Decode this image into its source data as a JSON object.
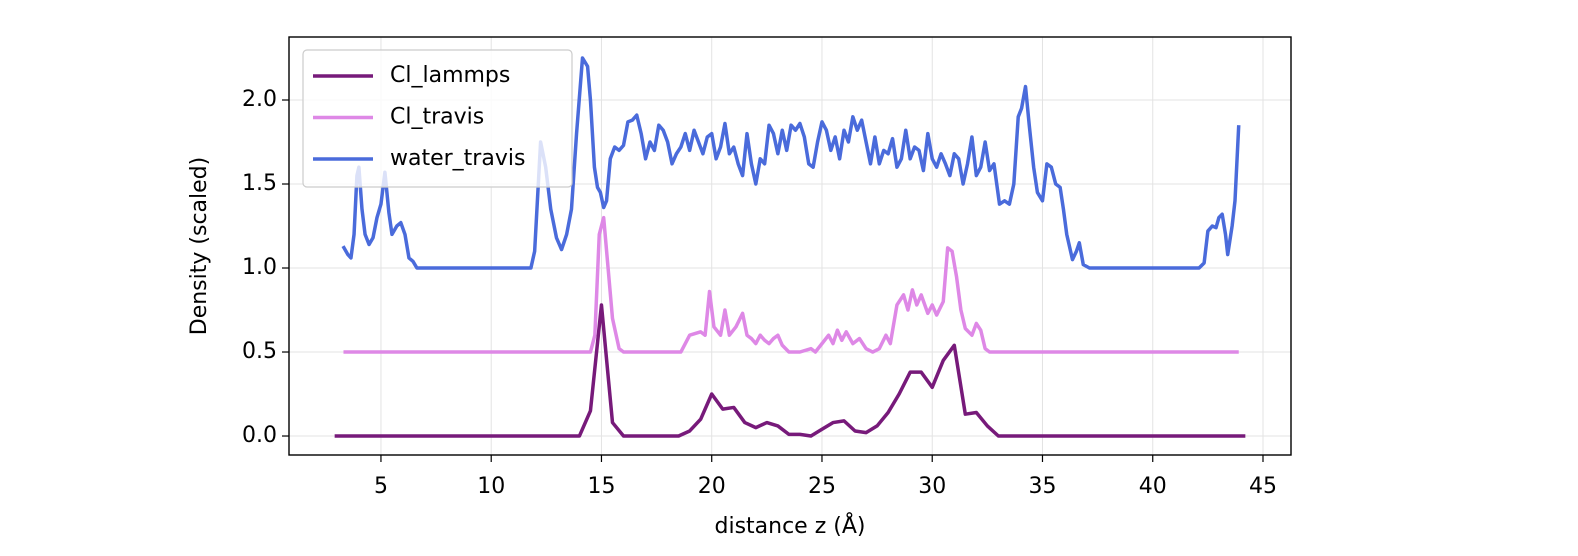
{
  "chart_data": {
    "type": "line",
    "xlabel": "distance z (Å)",
    "ylabel": "Density (scaled)",
    "xlim": [
      0.83,
      46.27
    ],
    "ylim": [
      -0.113,
      2.375
    ],
    "xticks": [
      5,
      10,
      15,
      20,
      25,
      30,
      35,
      40,
      45
    ],
    "yticks": [
      {
        "value": 0,
        "label": "0.0"
      },
      0.5,
      {
        "value": 1,
        "label": "1.0"
      },
      1.5,
      {
        "value": 2,
        "label": "2.0"
      }
    ],
    "grid": true,
    "legend": "upper left",
    "series": [
      {
        "name": "Cl_lammps",
        "color": "#771a7a",
        "x": [
          2.9,
          14.0,
          14.5,
          15.0,
          15.5,
          16.0,
          18.5,
          19.0,
          19.5,
          20.0,
          20.5,
          21.0,
          21.5,
          22.0,
          22.5,
          23.0,
          23.5,
          24.0,
          24.5,
          25.0,
          25.5,
          26.0,
          26.5,
          27.0,
          27.5,
          28.0,
          28.5,
          29.0,
          29.5,
          30.0,
          30.5,
          31.0,
          31.5,
          32.0,
          32.5,
          33.0,
          44.2
        ],
        "values": [
          0,
          0,
          0.15,
          0.78,
          0.08,
          0,
          0,
          0.03,
          0.1,
          0.25,
          0.16,
          0.17,
          0.08,
          0.05,
          0.08,
          0.06,
          0.01,
          0.01,
          0,
          0.04,
          0.08,
          0.09,
          0.03,
          0.02,
          0.06,
          0.14,
          0.25,
          0.38,
          0.38,
          0.29,
          0.45,
          0.54,
          0.13,
          0.14,
          0.06,
          0,
          0
        ]
      },
      {
        "name": "Cl_travis",
        "color": "#de88e6",
        "x": [
          3.3,
          14.5,
          14.7,
          14.9,
          15.1,
          15.3,
          15.5,
          15.8,
          16.0,
          18.6,
          19.0,
          19.5,
          19.7,
          19.9,
          20.1,
          20.4,
          20.6,
          20.8,
          21.1,
          21.4,
          21.6,
          21.8,
          22.0,
          22.2,
          22.4,
          22.6,
          22.8,
          23.0,
          23.2,
          23.5,
          24.0,
          24.5,
          24.7,
          25.0,
          25.3,
          25.5,
          25.7,
          25.9,
          26.1,
          26.4,
          26.7,
          27.0,
          27.3,
          27.6,
          27.9,
          28.1,
          28.4,
          28.7,
          28.9,
          29.1,
          29.3,
          29.5,
          29.8,
          30.0,
          30.2,
          30.5,
          30.7,
          30.9,
          31.1,
          31.3,
          31.5,
          31.8,
          32.0,
          32.2,
          32.4,
          32.6,
          43.9
        ],
        "values": [
          0.5,
          0.5,
          0.6,
          1.2,
          1.3,
          1.0,
          0.7,
          0.52,
          0.5,
          0.5,
          0.6,
          0.62,
          0.6,
          0.86,
          0.65,
          0.6,
          0.75,
          0.6,
          0.65,
          0.73,
          0.6,
          0.58,
          0.55,
          0.6,
          0.57,
          0.55,
          0.58,
          0.6,
          0.54,
          0.5,
          0.5,
          0.52,
          0.5,
          0.55,
          0.6,
          0.55,
          0.63,
          0.57,
          0.62,
          0.55,
          0.58,
          0.52,
          0.5,
          0.52,
          0.6,
          0.55,
          0.78,
          0.84,
          0.75,
          0.87,
          0.78,
          0.84,
          0.73,
          0.78,
          0.72,
          0.8,
          1.12,
          1.1,
          0.95,
          0.75,
          0.64,
          0.6,
          0.67,
          0.63,
          0.52,
          0.5,
          0.5
        ]
      },
      {
        "name": "water_travis",
        "color": "#4a6bdb",
        "x": [
          3.28,
          3.5,
          3.64,
          3.78,
          3.91,
          4.0,
          4.14,
          4.28,
          4.46,
          4.64,
          4.82,
          5.0,
          5.18,
          5.36,
          5.5,
          5.72,
          5.9,
          6.09,
          6.27,
          6.45,
          6.63,
          11.8,
          11.97,
          12.24,
          12.47,
          12.7,
          12.96,
          13.19,
          13.42,
          13.64,
          13.87,
          14.14,
          14.37,
          14.5,
          14.68,
          14.82,
          14.95,
          15.1,
          15.23,
          15.4,
          15.6,
          15.8,
          16.0,
          16.2,
          16.4,
          16.6,
          16.8,
          17.0,
          17.2,
          17.4,
          17.6,
          17.8,
          18.0,
          18.2,
          18.4,
          18.6,
          18.8,
          19.0,
          19.2,
          19.4,
          19.6,
          19.8,
          20.0,
          20.2,
          20.4,
          20.6,
          20.8,
          21.0,
          21.2,
          21.4,
          21.6,
          21.8,
          22.0,
          22.2,
          22.4,
          22.6,
          22.8,
          23.0,
          23.2,
          23.4,
          23.6,
          23.8,
          24.0,
          24.2,
          24.4,
          24.6,
          24.8,
          25.0,
          25.2,
          25.4,
          25.6,
          25.8,
          26.0,
          26.2,
          26.4,
          26.6,
          26.8,
          27.0,
          27.2,
          27.4,
          27.6,
          27.8,
          28.0,
          28.2,
          28.4,
          28.6,
          28.8,
          29.0,
          29.2,
          29.4,
          29.6,
          29.8,
          30.0,
          30.2,
          30.4,
          30.6,
          30.8,
          31.0,
          31.2,
          31.4,
          31.6,
          31.8,
          32.0,
          32.2,
          32.4,
          32.6,
          32.8,
          33.05,
          33.28,
          33.5,
          33.7,
          33.9,
          34.05,
          34.23,
          34.4,
          34.6,
          34.77,
          35.0,
          35.2,
          35.4,
          35.6,
          35.8,
          35.95,
          36.1,
          36.36,
          36.54,
          36.67,
          36.85,
          37.13,
          42.1,
          42.33,
          42.5,
          42.7,
          42.87,
          43.0,
          43.15,
          43.3,
          43.4,
          43.6,
          43.73,
          43.9
        ],
        "values": [
          1.13,
          1.08,
          1.06,
          1.2,
          1.55,
          1.6,
          1.35,
          1.2,
          1.14,
          1.18,
          1.3,
          1.38,
          1.57,
          1.33,
          1.2,
          1.25,
          1.27,
          1.2,
          1.06,
          1.04,
          1.0,
          1.0,
          1.1,
          1.75,
          1.6,
          1.35,
          1.18,
          1.11,
          1.2,
          1.35,
          1.8,
          2.25,
          2.2,
          2.0,
          1.6,
          1.48,
          1.45,
          1.36,
          1.4,
          1.65,
          1.72,
          1.7,
          1.73,
          1.87,
          1.88,
          1.91,
          1.8,
          1.65,
          1.75,
          1.7,
          1.85,
          1.82,
          1.75,
          1.62,
          1.68,
          1.72,
          1.8,
          1.7,
          1.82,
          1.75,
          1.68,
          1.78,
          1.8,
          1.65,
          1.72,
          1.86,
          1.68,
          1.72,
          1.62,
          1.55,
          1.8,
          1.62,
          1.5,
          1.65,
          1.62,
          1.85,
          1.8,
          1.68,
          1.82,
          1.7,
          1.85,
          1.82,
          1.86,
          1.78,
          1.62,
          1.6,
          1.75,
          1.87,
          1.82,
          1.7,
          1.78,
          1.65,
          1.82,
          1.75,
          1.9,
          1.82,
          1.88,
          1.75,
          1.62,
          1.78,
          1.62,
          1.7,
          1.68,
          1.77,
          1.6,
          1.65,
          1.82,
          1.65,
          1.72,
          1.7,
          1.58,
          1.8,
          1.65,
          1.6,
          1.68,
          1.62,
          1.55,
          1.68,
          1.65,
          1.5,
          1.62,
          1.78,
          1.55,
          1.6,
          1.75,
          1.58,
          1.62,
          1.38,
          1.4,
          1.38,
          1.5,
          1.9,
          1.95,
          2.08,
          1.85,
          1.6,
          1.45,
          1.4,
          1.62,
          1.6,
          1.5,
          1.48,
          1.35,
          1.2,
          1.05,
          1.1,
          1.15,
          1.02,
          1.0,
          1.0,
          1.03,
          1.22,
          1.25,
          1.24,
          1.3,
          1.32,
          1.2,
          1.08,
          1.25,
          1.4,
          1.85
        ]
      }
    ]
  }
}
